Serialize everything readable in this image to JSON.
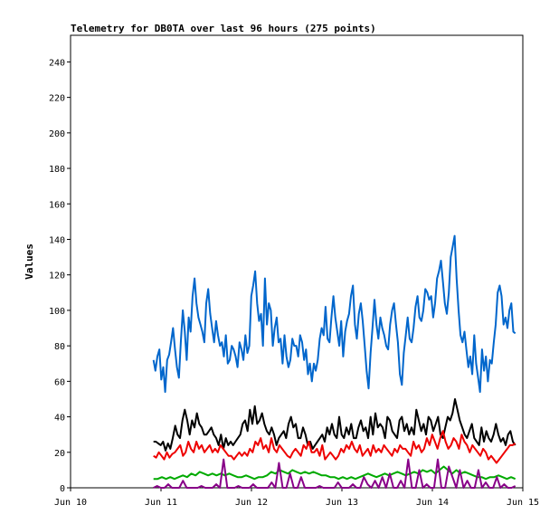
{
  "chart_data": {
    "type": "line",
    "title": "Telemetry for DB0TA over last 96 hours (275 points)",
    "xlabel": "",
    "ylabel": "Values",
    "ylim": [
      0,
      255
    ],
    "yticks": [
      0,
      20,
      40,
      60,
      80,
      100,
      120,
      140,
      160,
      180,
      200,
      220,
      240
    ],
    "xlim": [
      "Jun 10",
      "Jun 15"
    ],
    "xticks": [
      "Jun 10",
      "Jun 11",
      "Jun 12",
      "Jun 13",
      "Jun 14",
      "Jun 15"
    ],
    "x_start": "Jun 10 22:00",
    "x_end": "Jun 14 22:00",
    "grid": false,
    "legend": "none",
    "series": [
      {
        "color": "#0066cc",
        "values": [
          72,
          66,
          74,
          78,
          61,
          68,
          54,
          72,
          75,
          82,
          90,
          78,
          68,
          62,
          82,
          100,
          88,
          72,
          96,
          88,
          108,
          118,
          104,
          96,
          92,
          88,
          82,
          104,
          112,
          98,
          90,
          82,
          94,
          86,
          80,
          82,
          74,
          86,
          70,
          72,
          80,
          78,
          74,
          68,
          82,
          78,
          72,
          86,
          76,
          80,
          108,
          114,
          122,
          104,
          94,
          98,
          80,
          118,
          92,
          104,
          100,
          80,
          90,
          96,
          82,
          84,
          70,
          86,
          74,
          68,
          72,
          84,
          80,
          80,
          74,
          86,
          82,
          72,
          78,
          64,
          70,
          60,
          70,
          66,
          72,
          84,
          90,
          86,
          102,
          84,
          82,
          96,
          108,
          96,
          88,
          80,
          94,
          74,
          88,
          94,
          98,
          108,
          114,
          92,
          84,
          98,
          104,
          94,
          80,
          66,
          56,
          76,
          90,
          106,
          92,
          84,
          96,
          90,
          86,
          80,
          78,
          92,
          100,
          104,
          92,
          82,
          64,
          58,
          76,
          86,
          96,
          84,
          82,
          90,
          102,
          108,
          96,
          94,
          100,
          112,
          110,
          106,
          108,
          96,
          104,
          118,
          122,
          128,
          116,
          104,
          98,
          110,
          130,
          136,
          142,
          118,
          100,
          86,
          82,
          88,
          78,
          68,
          74,
          64,
          86,
          70,
          62,
          54,
          78,
          66,
          74,
          60,
          72,
          70,
          82,
          92,
          110,
          114,
          108,
          92,
          96,
          90,
          100,
          104,
          88,
          87
        ]
      },
      {
        "color": "#000000",
        "values": [
          26,
          26,
          25,
          24,
          26,
          21,
          25,
          22,
          28,
          35,
          30,
          28,
          38,
          44,
          38,
          30,
          38,
          34,
          42,
          36,
          34,
          30,
          30,
          32,
          34,
          30,
          28,
          24,
          30,
          22,
          28,
          24,
          26,
          24,
          26,
          28,
          30,
          36,
          38,
          32,
          44,
          36,
          46,
          36,
          38,
          42,
          36,
          32,
          30,
          34,
          30,
          24,
          28,
          30,
          32,
          28,
          36,
          40,
          34,
          36,
          28,
          28,
          34,
          30,
          24,
          26,
          22,
          24,
          26,
          28,
          30,
          26,
          34,
          30,
          36,
          30,
          28,
          40,
          30,
          28,
          34,
          30,
          36,
          28,
          28,
          34,
          38,
          32,
          34,
          28,
          40,
          30,
          42,
          34,
          36,
          34,
          28,
          40,
          38,
          32,
          30,
          28,
          38,
          40,
          32,
          36,
          30,
          34,
          30,
          44,
          38,
          32,
          36,
          30,
          40,
          38,
          32,
          36,
          40,
          30,
          28,
          34,
          40,
          38,
          42,
          50,
          44,
          38,
          34,
          30,
          28,
          32,
          36,
          28,
          26,
          24,
          34,
          26,
          32,
          28,
          26,
          30,
          36,
          30,
          26,
          28,
          24,
          30,
          32,
          26,
          24
        ]
      },
      {
        "color": "#ee0000",
        "values": [
          18,
          17,
          20,
          18,
          16,
          20,
          17,
          19,
          20,
          22,
          24,
          18,
          20,
          26,
          22,
          20,
          26,
          22,
          24,
          20,
          22,
          24,
          20,
          22,
          20,
          24,
          22,
          20,
          18,
          18,
          16,
          18,
          20,
          18,
          20,
          18,
          22,
          20,
          26,
          24,
          28,
          22,
          24,
          20,
          28,
          22,
          20,
          24,
          22,
          20,
          18,
          17,
          20,
          22,
          20,
          18,
          24,
          22,
          26,
          20,
          20,
          22,
          18,
          24,
          16,
          18,
          20,
          18,
          16,
          18,
          22,
          20,
          24,
          22,
          26,
          22,
          20,
          24,
          18,
          20,
          22,
          18,
          24,
          20,
          22,
          20,
          24,
          22,
          20,
          18,
          22,
          20,
          24,
          22,
          22,
          20,
          18,
          26,
          22,
          24,
          20,
          22,
          28,
          24,
          30,
          26,
          22,
          28,
          32,
          26,
          22,
          24,
          28,
          26,
          22,
          30,
          26,
          24,
          20,
          24,
          22,
          20,
          18,
          22,
          20,
          16,
          18,
          16,
          14,
          16,
          18,
          20,
          22,
          24,
          24,
          25
        ]
      },
      {
        "color": "#00aa00",
        "values": [
          5,
          5,
          6,
          5,
          6,
          5,
          6,
          7,
          6,
          8,
          7,
          9,
          8,
          7,
          8,
          7,
          8,
          7,
          8,
          7,
          6,
          6,
          7,
          6,
          5,
          6,
          6,
          7,
          9,
          8,
          10,
          9,
          8,
          10,
          9,
          8,
          9,
          8,
          9,
          8,
          7,
          7,
          6,
          6,
          5,
          6,
          5,
          6,
          5,
          6,
          7,
          8,
          7,
          6,
          7,
          8,
          7,
          8,
          9,
          8,
          7,
          8,
          9,
          8,
          10,
          9,
          10,
          8,
          10,
          12,
          10,
          8,
          10,
          8,
          9,
          8,
          7,
          6,
          6,
          5,
          6,
          6,
          7,
          6,
          5,
          6,
          5
        ]
      },
      {
        "color": "#880088",
        "values": [
          0,
          1,
          0,
          0,
          2,
          0,
          0,
          0,
          4,
          0,
          0,
          0,
          0,
          1,
          0,
          0,
          0,
          2,
          0,
          16,
          0,
          0,
          0,
          1,
          0,
          0,
          0,
          2,
          0,
          0,
          0,
          0,
          3,
          0,
          14,
          0,
          0,
          8,
          0,
          0,
          6,
          0,
          0,
          0,
          0,
          1,
          0,
          0,
          0,
          0,
          3,
          0,
          0,
          0,
          2,
          0,
          0,
          6,
          2,
          0,
          4,
          0,
          6,
          0,
          8,
          0,
          0,
          4,
          0,
          16,
          0,
          0,
          10,
          0,
          2,
          0,
          0,
          16,
          0,
          0,
          12,
          6,
          0,
          10,
          0,
          4,
          0,
          0,
          10,
          0,
          3,
          0,
          0,
          6,
          0,
          2,
          0,
          0,
          1
        ]
      }
    ]
  }
}
